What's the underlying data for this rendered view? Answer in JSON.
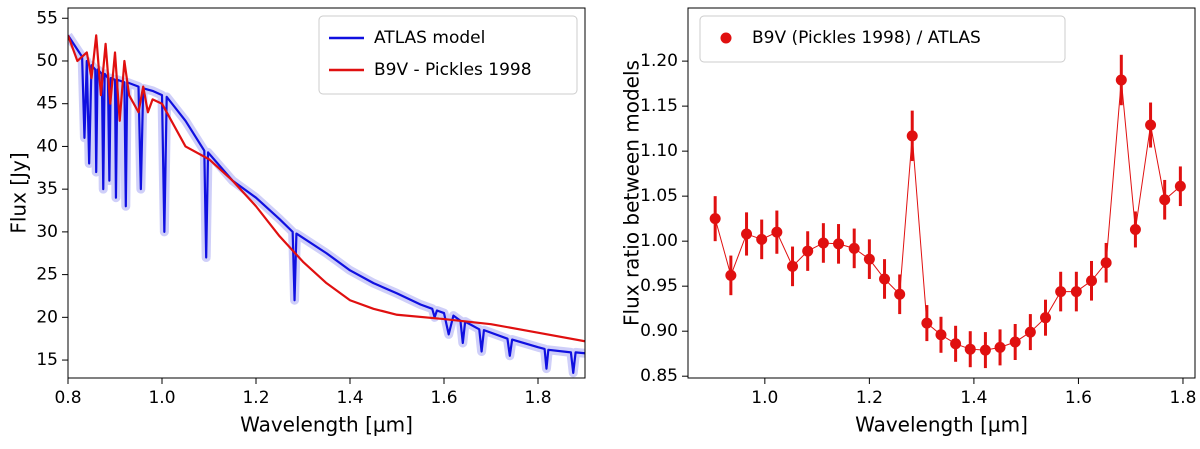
{
  "chart_data": [
    {
      "type": "line",
      "xlabel": "Wavelength [μm]",
      "ylabel": "Flux [Jy]",
      "xlim": [
        0.8,
        1.9
      ],
      "ylim": [
        12.9,
        56.2
      ],
      "xticks": [
        0.8,
        {
          "value": 1,
          "label": "1.0"
        },
        1.2,
        1.4,
        1.6,
        1.8
      ],
      "yticks": [
        15,
        20,
        25,
        30,
        35,
        40,
        45,
        50,
        55
      ],
      "legend": "upper right",
      "series": [
        {
          "name": "ATLAS model",
          "color": "#1010e0",
          "x": [
            0.8,
            0.83,
            0.835,
            0.84,
            0.845,
            0.85,
            0.858,
            0.86,
            0.863,
            0.872,
            0.875,
            0.878,
            0.885,
            0.888,
            0.891,
            0.9,
            0.902,
            0.905,
            0.92,
            0.923,
            0.926,
            0.95,
            0.955,
            0.96,
            0.98,
            1.0,
            1.005,
            1.01,
            1.05,
            1.09,
            1.094,
            1.098,
            1.15,
            1.2,
            1.25,
            1.278,
            1.282,
            1.286,
            1.35,
            1.4,
            1.45,
            1.5,
            1.55,
            1.575,
            1.58,
            1.585,
            1.6,
            1.61,
            1.62,
            1.635,
            1.64,
            1.645,
            1.675,
            1.68,
            1.685,
            1.735,
            1.74,
            1.745,
            1.8,
            1.814,
            1.818,
            1.822,
            1.87,
            1.875,
            1.88,
            1.9
          ],
          "values": [
            53,
            50.5,
            41,
            50,
            38,
            49.5,
            49,
            37,
            49,
            48.5,
            35,
            48.5,
            48,
            36,
            48,
            47.8,
            34,
            47.8,
            47.5,
            33,
            47.5,
            47,
            35,
            46.8,
            46.5,
            46,
            30,
            45.8,
            43,
            39.5,
            27,
            39.3,
            36,
            34,
            31.5,
            30,
            22,
            29.8,
            27.5,
            25.5,
            24,
            22.8,
            21.5,
            21,
            20,
            20.8,
            20.5,
            18,
            20.2,
            19.6,
            17,
            19.5,
            18.6,
            16,
            18.5,
            17.5,
            15.5,
            17.4,
            16.5,
            16.3,
            14,
            16.2,
            15.9,
            13.5,
            15.9,
            15.8
          ]
        },
        {
          "name": "B9V - Pickles 1998",
          "color": "#e01010",
          "x": [
            0.8,
            0.82,
            0.84,
            0.85,
            0.86,
            0.87,
            0.88,
            0.89,
            0.9,
            0.91,
            0.92,
            0.93,
            0.95,
            0.96,
            0.97,
            0.98,
            1.0,
            1.02,
            1.05,
            1.1,
            1.15,
            1.2,
            1.25,
            1.3,
            1.35,
            1.4,
            1.45,
            1.5,
            1.6,
            1.7,
            1.8,
            1.9
          ],
          "values": [
            53,
            50,
            51,
            48,
            53,
            46,
            52,
            45,
            51,
            43,
            50,
            46,
            44,
            47,
            44,
            45.5,
            45,
            43,
            40,
            38.5,
            36,
            33,
            29.5,
            26.5,
            24,
            22,
            21,
            20.3,
            19.8,
            19.2,
            18.2,
            17.2
          ]
        }
      ]
    },
    {
      "type": "scatter",
      "xlabel": "Wavelength [μm]",
      "ylabel": "Flux ratio between models",
      "xlim": [
        0.853,
        1.823
      ],
      "ylim": [
        0.848,
        1.259
      ],
      "xticks": [
        {
          "value": 1,
          "label": "1.0"
        },
        1.2,
        1.4,
        1.6,
        1.8
      ],
      "yticks": [
        0.85,
        {
          "value": 0.9,
          "label": "0.90"
        },
        0.95,
        {
          "value": 1,
          "label": "1.00"
        },
        1.05,
        {
          "value": 1.1,
          "label": "1.10"
        },
        1.15,
        {
          "value": 1.2,
          "label": "1.20"
        }
      ],
      "legend": "upper left",
      "x": [
        0.905,
        0.935,
        0.965,
        0.994,
        1.023,
        1.053,
        1.082,
        1.112,
        1.141,
        1.171,
        1.2,
        1.229,
        1.258,
        1.282,
        1.31,
        1.337,
        1.365,
        1.393,
        1.422,
        1.45,
        1.479,
        1.508,
        1.537,
        1.566,
        1.596,
        1.625,
        1.653,
        1.682,
        1.709,
        1.738,
        1.765,
        1.795
      ],
      "series": [
        {
          "name": "B9V (Pickles 1998) / ATLAS",
          "color": "#e01010",
          "values": [
            1.025,
            0.962,
            1.008,
            1.002,
            1.01,
            0.972,
            0.989,
            0.998,
            0.997,
            0.992,
            0.98,
            0.958,
            0.941,
            1.117,
            0.909,
            0.896,
            0.886,
            0.88,
            0.879,
            0.882,
            0.888,
            0.899,
            0.915,
            0.944,
            0.944,
            0.956,
            0.976,
            1.179,
            1.013,
            1.129,
            1.046,
            1.061
          ],
          "errors": [
            0.025,
            0.022,
            0.024,
            0.022,
            0.024,
            0.022,
            0.022,
            0.022,
            0.022,
            0.022,
            0.022,
            0.022,
            0.022,
            0.028,
            0.02,
            0.02,
            0.02,
            0.02,
            0.02,
            0.02,
            0.02,
            0.02,
            0.02,
            0.022,
            0.022,
            0.022,
            0.022,
            0.028,
            0.02,
            0.025,
            0.022,
            0.022
          ]
        }
      ]
    }
  ]
}
